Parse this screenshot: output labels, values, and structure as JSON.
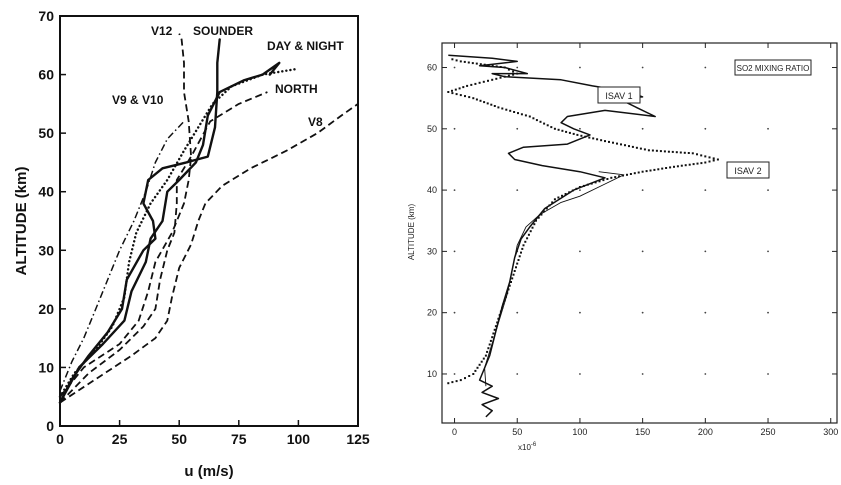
{
  "chart_data": [
    {
      "type": "line",
      "xlabel": "u (m/s)",
      "ylabel": "ALTITUDE (km)",
      "xlim": [
        0,
        125
      ],
      "ylim": [
        0,
        70
      ],
      "x_ticks": [
        "0",
        "25",
        "50",
        "75",
        "100",
        "125"
      ],
      "y_ticks": [
        "0",
        "10",
        "20",
        "30",
        "40",
        "50",
        "60",
        "70"
      ],
      "grid": false,
      "labels": [
        "V12",
        "SOUNDER",
        "DAY & NIGHT",
        "V9 & V10",
        "NORTH",
        "V8"
      ],
      "series": [
        {
          "name": "SOUNDER",
          "style": "solid-thick",
          "points": [
            [
              0,
              4
            ],
            [
              5,
              8
            ],
            [
              12,
              12
            ],
            [
              20,
              16
            ],
            [
              26,
              20
            ],
            [
              28,
              25
            ],
            [
              35,
              30
            ],
            [
              40,
              32
            ],
            [
              39,
              35
            ],
            [
              35,
              38
            ],
            [
              37,
              42
            ],
            [
              43,
              44
            ],
            [
              53,
              45
            ],
            [
              62,
              46
            ],
            [
              65,
              51
            ],
            [
              66,
              57
            ],
            [
              66,
              62
            ],
            [
              67,
              66
            ]
          ]
        },
        {
          "name": "DAY & NIGHT",
          "style": "solid-thick",
          "points": [
            [
              0,
              4
            ],
            [
              8,
              10
            ],
            [
              18,
              14
            ],
            [
              27,
              18
            ],
            [
              30,
              23
            ],
            [
              36,
              28
            ],
            [
              38,
              32
            ],
            [
              43,
              35
            ],
            [
              45,
              40
            ],
            [
              50,
              42
            ],
            [
              57,
              45
            ],
            [
              60,
              48
            ],
            [
              62,
              53
            ],
            [
              67,
              57
            ],
            [
              77,
              59
            ],
            [
              85,
              60
            ],
            [
              92,
              62
            ],
            [
              88,
              60
            ]
          ]
        },
        {
          "name": "V9 & V10",
          "style": "dotted",
          "points": [
            [
              0,
              5
            ],
            [
              6,
              9
            ],
            [
              15,
              13
            ],
            [
              22,
              17
            ],
            [
              27,
              22
            ],
            [
              29,
              28
            ],
            [
              32,
              33
            ],
            [
              38,
              38
            ],
            [
              45,
              42
            ],
            [
              52,
              47
            ],
            [
              58,
              51
            ],
            [
              64,
              55
            ],
            [
              72,
              58
            ],
            [
              85,
              60
            ],
            [
              100,
              61
            ]
          ]
        },
        {
          "name": "V12",
          "style": "dashed",
          "points": [
            [
              0,
              5
            ],
            [
              10,
              10
            ],
            [
              25,
              14
            ],
            [
              33,
              18
            ],
            [
              37,
              23
            ],
            [
              40,
              28
            ],
            [
              47,
              33
            ],
            [
              52,
              38
            ],
            [
              54,
              42
            ],
            [
              55,
              46
            ],
            [
              54,
              52
            ],
            [
              52,
              57
            ],
            [
              52,
              62
            ],
            [
              51,
              66
            ],
            [
              50,
              67
            ]
          ]
        },
        {
          "name": "NORTH",
          "style": "dashed",
          "points": [
            [
              0,
              4
            ],
            [
              12,
              9
            ],
            [
              25,
              13
            ],
            [
              35,
              17
            ],
            [
              40,
              20
            ],
            [
              42,
              25
            ],
            [
              45,
              30
            ],
            [
              48,
              33
            ],
            [
              49,
              38
            ],
            [
              49,
              42
            ],
            [
              55,
              46
            ],
            [
              63,
              52
            ],
            [
              75,
              55
            ],
            [
              87,
              57
            ]
          ]
        },
        {
          "name": "V8",
          "style": "dashed",
          "points": [
            [
              0,
              4
            ],
            [
              15,
              8
            ],
            [
              30,
              12
            ],
            [
              40,
              15
            ],
            [
              45,
              18
            ],
            [
              47,
              22
            ],
            [
              50,
              27
            ],
            [
              55,
              31
            ],
            [
              58,
              35
            ],
            [
              61,
              38
            ],
            [
              68,
              41
            ],
            [
              80,
              44
            ],
            [
              95,
              47
            ],
            [
              108,
              50
            ],
            [
              118,
              53
            ],
            [
              125,
              55
            ]
          ]
        },
        {
          "style": "dash-dot",
          "points": [
            [
              0,
              6
            ],
            [
              5,
              11
            ],
            [
              10,
              15
            ],
            [
              15,
              20
            ],
            [
              20,
              25
            ],
            [
              25,
              30
            ],
            [
              31,
              35
            ],
            [
              36,
              40
            ],
            [
              40,
              45
            ],
            [
              45,
              49
            ],
            [
              52,
              52
            ]
          ]
        }
      ]
    },
    {
      "type": "line",
      "title": "SO2 MIXING RATIO",
      "ylabel": "ALTITUDE (km)",
      "x_multiplier": "x10",
      "x_multiplier_exp": "-6",
      "xlim": [
        -10,
        305
      ],
      "ylim": [
        2,
        64
      ],
      "x_ticks": [
        "0",
        "50",
        "100",
        "150",
        "200",
        "250",
        "300"
      ],
      "y_ticks": [
        "10",
        "20",
        "30",
        "40",
        "50",
        "60"
      ],
      "grid": "dot markers",
      "series": [
        {
          "name": "ISAV 1",
          "style": "solid",
          "points": [
            [
              25,
              3
            ],
            [
              30,
              4
            ],
            [
              22,
              5
            ],
            [
              35,
              6
            ],
            [
              22,
              7
            ],
            [
              30,
              8
            ],
            [
              20,
              9
            ],
            [
              22,
              10
            ],
            [
              28,
              13
            ],
            [
              33,
              17
            ],
            [
              38,
              21
            ],
            [
              44,
              25
            ],
            [
              48,
              29
            ],
            [
              53,
              32
            ],
            [
              60,
              34
            ],
            [
              72,
              37
            ],
            [
              95,
              40
            ],
            [
              120,
              42
            ],
            [
              100,
              43
            ],
            [
              70,
              44
            ],
            [
              48,
              45
            ],
            [
              43,
              46
            ],
            [
              55,
              47
            ],
            [
              90,
              47.5
            ],
            [
              108,
              49
            ],
            [
              95,
              50
            ],
            [
              85,
              51
            ],
            [
              90,
              52
            ],
            [
              120,
              53
            ],
            [
              160,
              52
            ],
            [
              145,
              53.5
            ],
            [
              130,
              55
            ],
            [
              150,
              55.2
            ],
            [
              140,
              56
            ],
            [
              110,
              57
            ],
            [
              85,
              58
            ],
            [
              40,
              58.5
            ],
            [
              30,
              59
            ],
            [
              58,
              59
            ],
            [
              40,
              60
            ],
            [
              20,
              60.3
            ],
            [
              50,
              61
            ],
            [
              30,
              61.5
            ],
            [
              -5,
              62
            ]
          ]
        },
        {
          "name": "ISAV 2",
          "style": "solid-thin",
          "points": [
            [
              25,
              8
            ],
            [
              24,
              11
            ],
            [
              30,
              15
            ],
            [
              36,
              19
            ],
            [
              42,
              23
            ],
            [
              46,
              27
            ],
            [
              50,
              31
            ],
            [
              57,
              34
            ],
            [
              68,
              36
            ],
            [
              85,
              38
            ],
            [
              100,
              39
            ],
            [
              120,
              41
            ],
            [
              135,
              42.5
            ],
            [
              115,
              43
            ]
          ]
        },
        {
          "style": "dotted",
          "points": [
            [
              -5,
              8.5
            ],
            [
              5,
              9
            ],
            [
              15,
              10
            ],
            [
              25,
              13
            ],
            [
              35,
              19
            ],
            [
              45,
              25
            ],
            [
              55,
              31
            ],
            [
              65,
              35
            ],
            [
              80,
              38.5
            ],
            [
              100,
              40.5
            ],
            [
              125,
              42
            ],
            [
              150,
              43
            ],
            [
              175,
              43.8
            ],
            [
              200,
              44.5
            ],
            [
              210,
              45
            ],
            [
              190,
              46
            ],
            [
              155,
              46.5
            ],
            [
              120,
              48
            ],
            [
              98,
              49
            ],
            [
              80,
              50
            ],
            [
              60,
              52
            ],
            [
              35,
              53.5
            ],
            [
              15,
              55
            ],
            [
              -5,
              56
            ],
            [
              10,
              57
            ],
            [
              30,
              58
            ],
            [
              50,
              59
            ],
            [
              40,
              60
            ],
            [
              5,
              61
            ],
            [
              -5,
              61.5
            ]
          ]
        }
      ]
    }
  ]
}
